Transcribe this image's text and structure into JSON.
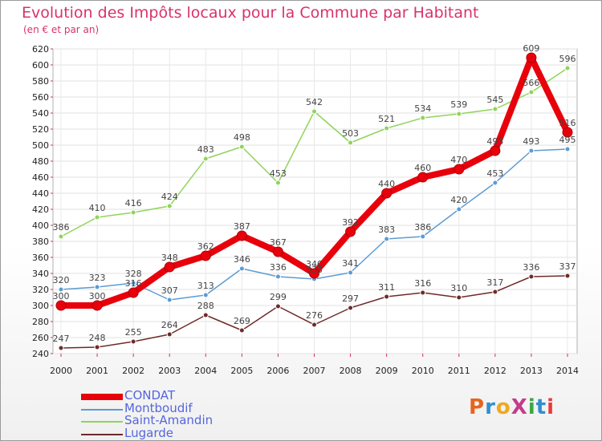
{
  "title": "Evolution des Impôts locaux pour la Commune par Habitant",
  "subtitle": "(en € et par an)",
  "brand": {
    "text": "ProXiti",
    "colors": [
      "#e8641c",
      "#2f8fd0",
      "#f0a820",
      "#c43c8c",
      "#3aa844",
      "#2f8fd0",
      "#e83a3a"
    ]
  },
  "chart_data": {
    "type": "line",
    "x": [
      "2000",
      "2001",
      "2002",
      "2003",
      "2004",
      "2005",
      "2006",
      "2007",
      "2008",
      "2009",
      "2010",
      "2011",
      "2012",
      "2013",
      "2014"
    ],
    "ylim": [
      240,
      620
    ],
    "yticks": [
      240,
      260,
      280,
      300,
      320,
      340,
      360,
      380,
      400,
      420,
      440,
      460,
      480,
      500,
      520,
      540,
      560,
      580,
      600,
      620
    ],
    "grid": true,
    "legend": "bottom-left",
    "series": [
      {
        "name": "CONDAT",
        "color": "#e8000b",
        "values": [
          300,
          300,
          316,
          348,
          362,
          387,
          367,
          340,
          392,
          440,
          460,
          470,
          493,
          609,
          516
        ]
      },
      {
        "name": "Montboudif",
        "color": "#5d9bd3",
        "values": [
          320,
          323,
          328,
          307,
          313,
          346,
          336,
          333,
          341,
          383,
          386,
          420,
          453,
          493,
          495
        ]
      },
      {
        "name": "Saint-Amandin",
        "color": "#8fd45a",
        "values": [
          386,
          410,
          416,
          424,
          483,
          498,
          453,
          542,
          503,
          521,
          534,
          539,
          545,
          566,
          596
        ]
      },
      {
        "name": "Lugarde",
        "color": "#6e2a2a",
        "values": [
          247,
          248,
          255,
          264,
          288,
          269,
          299,
          276,
          297,
          311,
          316,
          310,
          317,
          336,
          337
        ]
      }
    ]
  }
}
